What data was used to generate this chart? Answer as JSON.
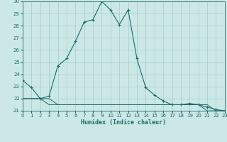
{
  "title": "",
  "xlabel": "Humidex (Indice chaleur)",
  "ylabel": "",
  "background_color": "#cce8e6",
  "grid_color": "#aacfcd",
  "line_color": "#1a6b6b",
  "x_min": 0,
  "x_max": 23,
  "y_min": 21,
  "y_max": 30,
  "x_ticks": [
    0,
    1,
    2,
    3,
    4,
    5,
    6,
    7,
    8,
    9,
    10,
    11,
    12,
    13,
    14,
    15,
    16,
    17,
    18,
    19,
    20,
    21,
    22,
    23
  ],
  "y_ticks": [
    21,
    22,
    23,
    24,
    25,
    26,
    27,
    28,
    29,
    30
  ],
  "series1_x": [
    0,
    1,
    2,
    3,
    4,
    5,
    6,
    7,
    8,
    9,
    10,
    11,
    12,
    13,
    14,
    15,
    16,
    17,
    18,
    19,
    20,
    21,
    22,
    23
  ],
  "series1_y": [
    23.5,
    22.9,
    22.0,
    22.2,
    24.7,
    25.3,
    26.7,
    28.3,
    28.5,
    30.0,
    29.3,
    28.1,
    29.3,
    25.3,
    22.9,
    22.3,
    21.8,
    21.5,
    21.5,
    21.6,
    21.5,
    21.3,
    21.1,
    21.0
  ],
  "series2_x": [
    0,
    1,
    2,
    3,
    4,
    5,
    6,
    7,
    8,
    9,
    10,
    11,
    12,
    13,
    14,
    15,
    16,
    17,
    18,
    19,
    20,
    21,
    22,
    23
  ],
  "series2_y": [
    22.0,
    22.0,
    22.0,
    22.0,
    21.5,
    21.5,
    21.5,
    21.5,
    21.5,
    21.5,
    21.5,
    21.5,
    21.5,
    21.5,
    21.5,
    21.5,
    21.5,
    21.5,
    21.5,
    21.5,
    21.5,
    21.5,
    21.0,
    21.0
  ],
  "series3_x": [
    0,
    1,
    2,
    3,
    4,
    5,
    6,
    7,
    8,
    9,
    10,
    11,
    12,
    13,
    14,
    15,
    16,
    17,
    18,
    19,
    20,
    21,
    22,
    23
  ],
  "series3_y": [
    22.0,
    22.0,
    22.0,
    21.5,
    21.5,
    21.5,
    21.5,
    21.5,
    21.5,
    21.5,
    21.5,
    21.5,
    21.5,
    21.5,
    21.5,
    21.5,
    21.5,
    21.5,
    21.5,
    21.5,
    21.5,
    21.0,
    21.0,
    21.0
  ]
}
